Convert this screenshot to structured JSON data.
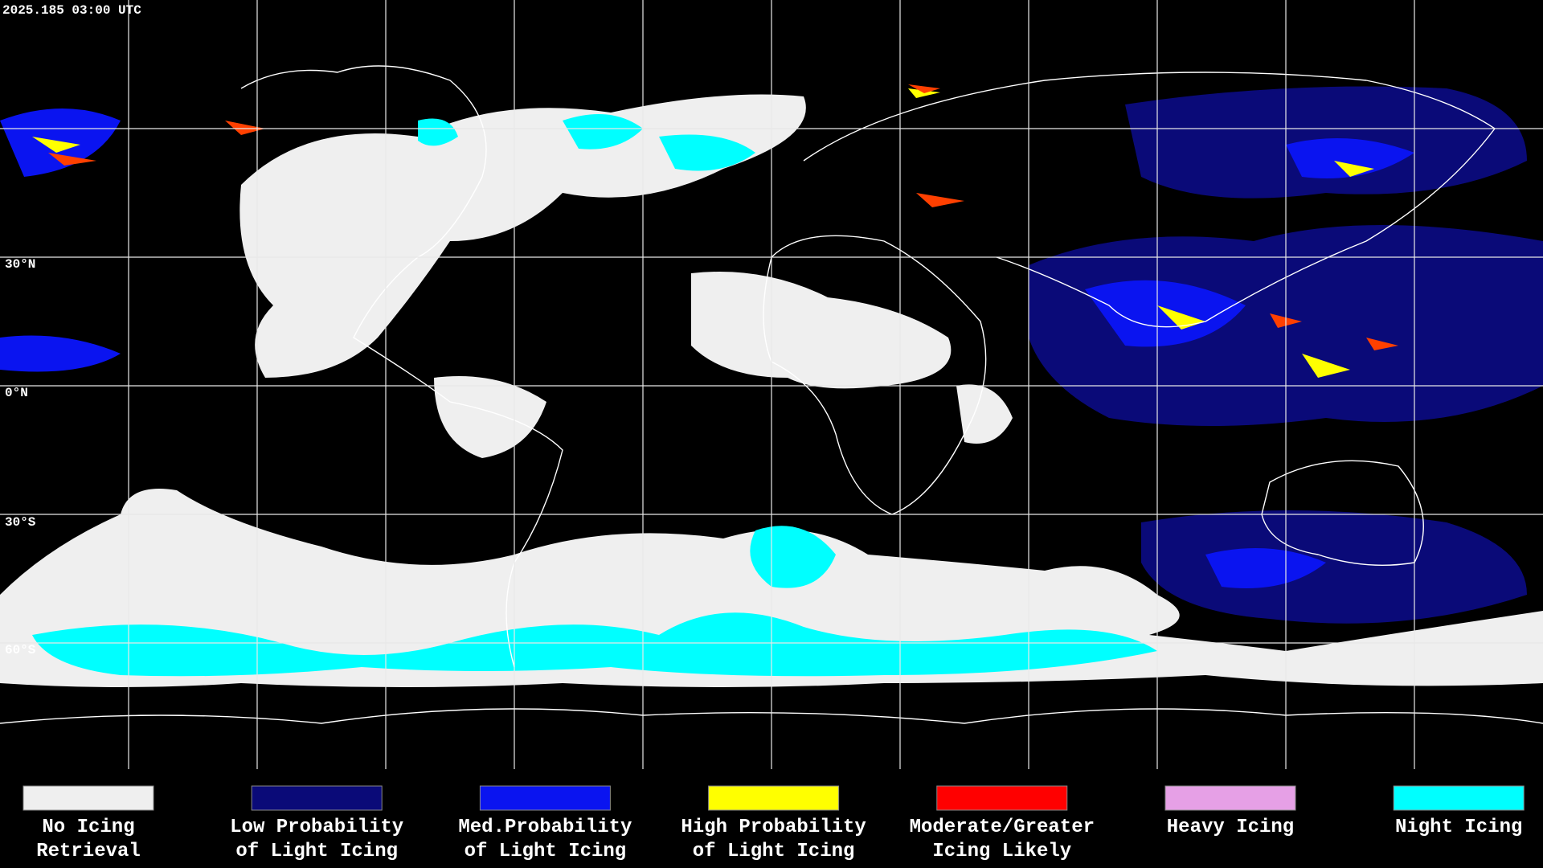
{
  "timestamp": "2025.185 03:00 UTC",
  "latitude_labels": [
    "30°N",
    "0°N",
    "30°S",
    "60°S"
  ],
  "legend": [
    {
      "lines": [
        "No Icing",
        "Retrieval"
      ],
      "color": "#efefef"
    },
    {
      "lines": [
        "Low Probability",
        "of Light Icing"
      ],
      "color": "#0a0a78"
    },
    {
      "lines": [
        "Med.Probability",
        "of Light Icing"
      ],
      "color": "#0a14f0"
    },
    {
      "lines": [
        "High Probability",
        "of Light Icing"
      ],
      "color": "#ffff00"
    },
    {
      "lines": [
        "Moderate/Greater",
        "Icing Likely"
      ],
      "color": "#ff0000"
    },
    {
      "lines": [
        "Heavy Icing"
      ],
      "color": "#e6a0e6"
    },
    {
      "lines": [
        "Night Icing"
      ],
      "color": "#00ffff"
    }
  ]
}
